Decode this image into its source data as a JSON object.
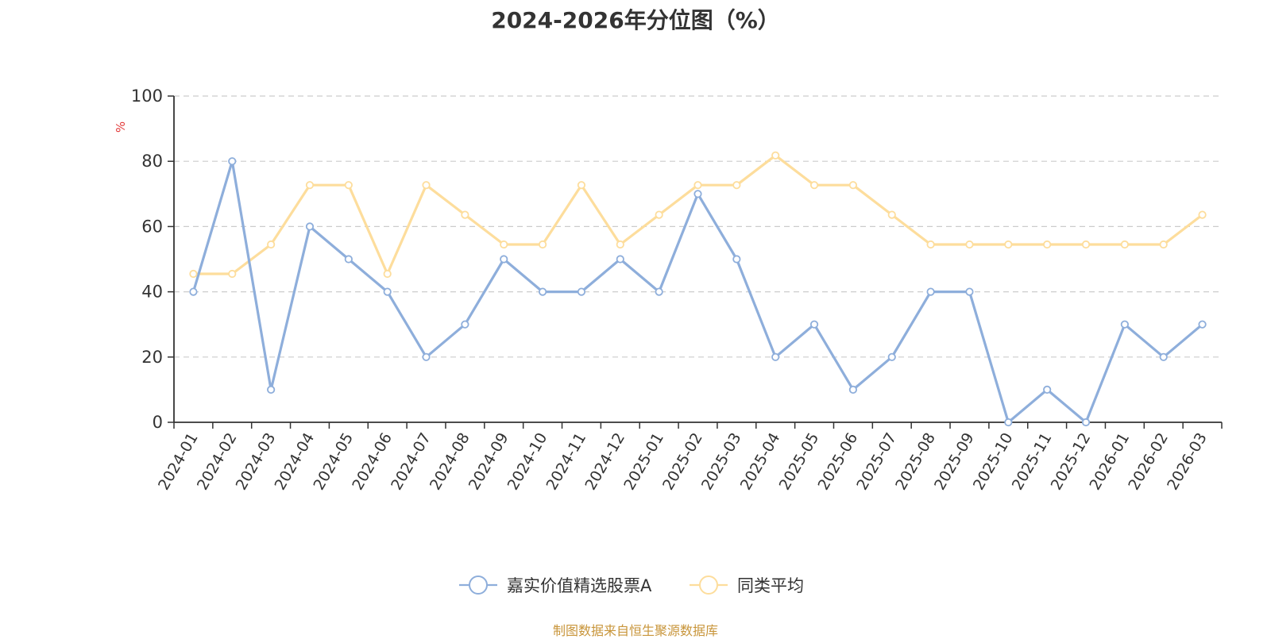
{
  "chart_data": {
    "type": "line",
    "title": "2024-2026年分位图（%）",
    "ylabel": "%",
    "xlabel": "",
    "ylim": [
      0,
      100
    ],
    "yticks": [
      "0",
      "20",
      "40",
      "60",
      "80",
      "100"
    ],
    "grid": true,
    "legend_position": "bottom",
    "categories": [
      "2024-01",
      "2024-02",
      "2024-03",
      "2024-04",
      "2024-05",
      "2024-06",
      "2024-07",
      "2024-08",
      "2024-09",
      "2024-10",
      "2024-11",
      "2024-12",
      "2025-01",
      "2025-02",
      "2025-03",
      "2025-04",
      "2025-05",
      "2025-06",
      "2025-07",
      "2025-08",
      "2025-09",
      "2025-10",
      "2025-11",
      "2025-12",
      "2026-01",
      "2026-02",
      "2026-03"
    ],
    "series": [
      {
        "name": "嘉实价值精选股票A",
        "color": "#8eaedb",
        "values": [
          40,
          80,
          10,
          60,
          50,
          40,
          20,
          30,
          50,
          40,
          40,
          50,
          40,
          70,
          50,
          20,
          30,
          10,
          20,
          40,
          40,
          0,
          10,
          0,
          30,
          20,
          30
        ]
      },
      {
        "name": "同类平均",
        "color": "#fddd9c",
        "values": [
          45.5,
          45.5,
          54.5,
          72.7,
          72.7,
          45.5,
          72.7,
          63.6,
          54.5,
          54.5,
          72.7,
          54.5,
          63.6,
          72.7,
          72.7,
          81.8,
          72.7,
          72.7,
          63.6,
          54.5,
          54.5,
          54.5,
          54.5,
          54.5,
          54.5,
          54.5,
          63.6
        ]
      }
    ]
  },
  "source_text": "制图数据来自恒生聚源数据库",
  "colors": {
    "axis": "#333333",
    "grid": "#cccccc",
    "ylabel": "#e23a3a",
    "source": "#c8953a"
  }
}
